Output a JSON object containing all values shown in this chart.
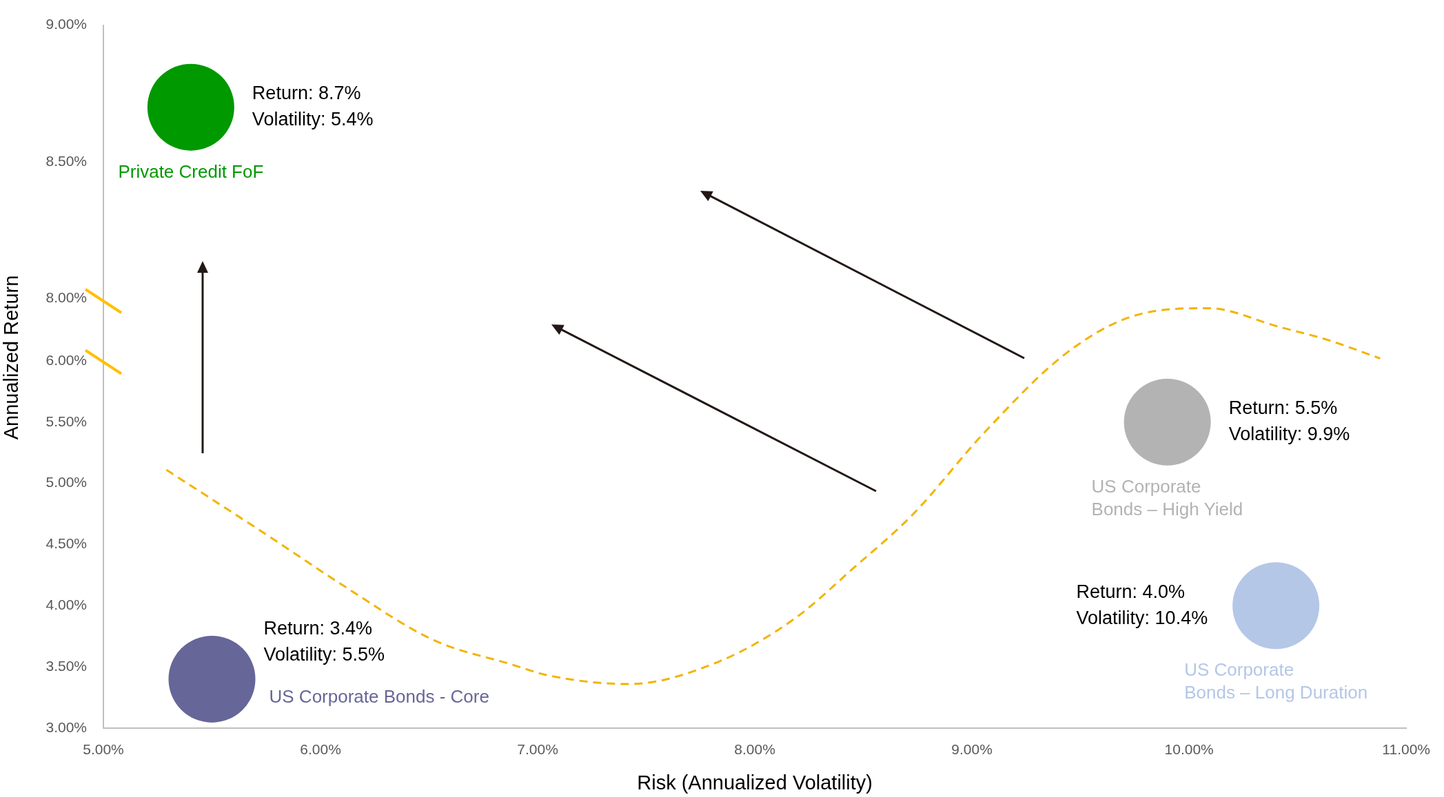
{
  "chart_data": [
    {
      "type": "bubble",
      "tick_labels": "y",
      "xlim": [
        5,
        11
      ],
      "ylim": [
        8,
        9
      ],
      "yticks": [
        {
          "value": 8,
          "label": "8.00%"
        },
        {
          "value": 8.5,
          "label": "8.50%"
        },
        {
          "value": 9,
          "label": "9.00%"
        }
      ],
      "series": [
        {
          "name": "Private Credit FoF",
          "color": "#009900",
          "x": [
            5.4
          ],
          "values": [
            8.7
          ],
          "sizes": [
            1
          ],
          "value_labels": [
            "Return: 8.7%\nVolatility: 5.4%"
          ]
        }
      ]
    },
    {
      "type": "bubble",
      "xlabel": "Risk (Annualized Volatility)",
      "ylabel": "Annualized Return",
      "xlim": [
        5,
        11
      ],
      "xticks": [
        {
          "value": 5,
          "label": "5.00%"
        },
        {
          "value": 6,
          "label": "6.00%"
        },
        {
          "value": 7,
          "label": "7.00%"
        },
        {
          "value": 8,
          "label": "8.00%"
        },
        {
          "value": 9,
          "label": "9.00%"
        },
        {
          "value": 10,
          "label": "10.00%"
        },
        {
          "value": 11,
          "label": "11.00%"
        }
      ],
      "ylim": [
        3,
        6.5
      ],
      "yticks": [
        {
          "value": 3,
          "label": "3.00%"
        },
        {
          "value": 3.5,
          "label": "3.50%"
        },
        {
          "value": 4,
          "label": "4.00%"
        },
        {
          "value": 4.5,
          "label": "4.50%"
        },
        {
          "value": 5,
          "label": "5.00%"
        },
        {
          "value": 5.5,
          "label": "5.50%"
        },
        {
          "value": 6,
          "label": "6.00%"
        }
      ],
      "series": [
        {
          "name": "US Corporate Bonds – High Yield",
          "color": "#b3b3b3",
          "x": [
            9.9
          ],
          "values": [
            5.5
          ],
          "sizes": [
            1
          ],
          "value_labels": [
            "Return: 5.5%\nVolatility: 9.9%"
          ]
        },
        {
          "name": "US Corporate Bonds – Long Duration",
          "color": "#b4c7e7",
          "x": [
            10.4
          ],
          "values": [
            4.0
          ],
          "sizes": [
            1
          ],
          "value_labels": [
            "Return: 4.0%\nVolatility: 10.4%"
          ]
        },
        {
          "name": "US Corporate Bonds - Core",
          "color": "#666699",
          "x": [
            5.5
          ],
          "values": [
            3.4
          ],
          "sizes": [
            1
          ],
          "value_labels": [
            "Return: 3.4%\nVolatility: 5.5%"
          ]
        },
        {
          "type": "line",
          "color": "#f2b400",
          "line_style": "dashed",
          "marker": "none",
          "x": [
            5.29,
            5.76,
            6.1,
            6.52,
            6.88,
            7.05,
            7.42,
            7.83,
            8.18,
            8.45,
            8.73,
            9.06,
            9.44,
            9.75,
            10.09,
            10.41,
            10.64,
            10.88
          ],
          "values": [
            5.11,
            4.57,
            4.17,
            3.72,
            3.52,
            3.43,
            3.36,
            3.54,
            3.89,
            4.3,
            4.75,
            5.42,
            6.07,
            6.37,
            6.43,
            6.28,
            6.17,
            6.02
          ]
        }
      ]
    }
  ]
}
